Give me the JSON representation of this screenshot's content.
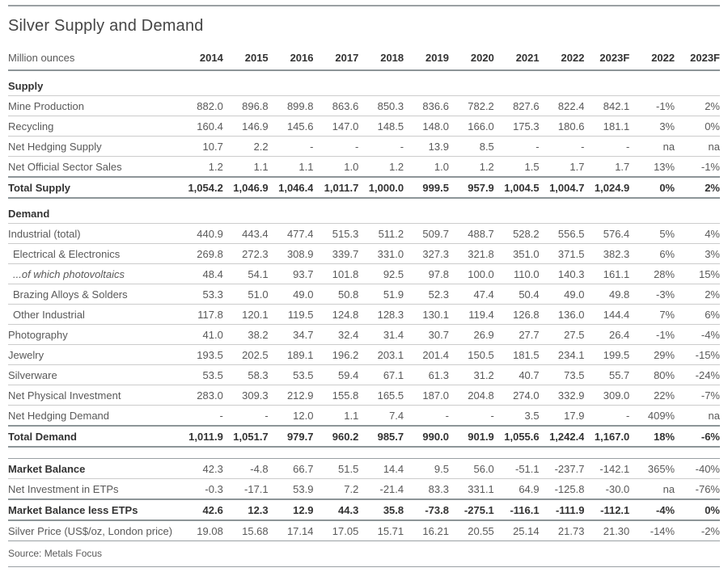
{
  "chart_data": {
    "type": "table",
    "title": "Silver Supply and Demand",
    "unit_label": "Million ounces",
    "columns": [
      "2014",
      "2015",
      "2016",
      "2017",
      "2018",
      "2019",
      "2020",
      "2021",
      "2022",
      "2023F",
      "2022",
      "2023F"
    ],
    "rows": [
      {
        "label": "Supply",
        "style": "section",
        "border": "light",
        "values": []
      },
      {
        "label": "Mine Production",
        "style": "data",
        "border": "light",
        "values": [
          "882.0",
          "896.8",
          "899.8",
          "863.6",
          "850.3",
          "836.6",
          "782.2",
          "827.6",
          "822.4",
          "842.1",
          "-1%",
          "2%"
        ]
      },
      {
        "label": "Recycling",
        "style": "data",
        "border": "light",
        "values": [
          "160.4",
          "146.9",
          "145.6",
          "147.0",
          "148.5",
          "148.0",
          "166.0",
          "175.3",
          "180.6",
          "181.1",
          "3%",
          "0%"
        ]
      },
      {
        "label": "Net Hedging Supply",
        "style": "data",
        "border": "light",
        "values": [
          "10.7",
          "2.2",
          "-",
          "-",
          "-",
          "13.9",
          "8.5",
          "-",
          "-",
          "-",
          "na",
          "na"
        ]
      },
      {
        "label": "Net Official Sector Sales",
        "style": "data",
        "border": "heavy",
        "values": [
          "1.2",
          "1.1",
          "1.1",
          "1.0",
          "1.2",
          "1.0",
          "1.2",
          "1.5",
          "1.7",
          "1.7",
          "13%",
          "-1%"
        ]
      },
      {
        "label": "Total Supply",
        "style": "total",
        "border": "heavy",
        "values": [
          "1,054.2",
          "1,046.9",
          "1,046.4",
          "1,011.7",
          "1,000.0",
          "999.5",
          "957.9",
          "1,004.5",
          "1,004.7",
          "1,024.9",
          "0%",
          "2%"
        ]
      },
      {
        "label": "Demand",
        "style": "section",
        "border": "light",
        "values": []
      },
      {
        "label": "Industrial (total)",
        "style": "data",
        "border": "light",
        "values": [
          "440.9",
          "443.4",
          "477.4",
          "515.3",
          "511.2",
          "509.7",
          "488.7",
          "528.2",
          "556.5",
          "576.4",
          "5%",
          "4%"
        ]
      },
      {
        "label": "Electrical & Electronics",
        "style": "indent",
        "border": "light",
        "values": [
          "269.8",
          "272.3",
          "308.9",
          "339.7",
          "331.0",
          "327.3",
          "321.8",
          "351.0",
          "371.5",
          "382.3",
          "6%",
          "3%"
        ]
      },
      {
        "label": "...of which photovoltaics",
        "style": "indent-italic",
        "border": "light",
        "values": [
          "48.4",
          "54.1",
          "93.7",
          "101.8",
          "92.5",
          "97.8",
          "100.0",
          "110.0",
          "140.3",
          "161.1",
          "28%",
          "15%"
        ]
      },
      {
        "label": "Brazing Alloys & Solders",
        "style": "indent",
        "border": "light",
        "values": [
          "53.3",
          "51.0",
          "49.0",
          "50.8",
          "51.9",
          "52.3",
          "47.4",
          "50.4",
          "49.0",
          "49.8",
          "-3%",
          "2%"
        ]
      },
      {
        "label": "Other Industrial",
        "style": "indent",
        "border": "light",
        "values": [
          "117.8",
          "120.1",
          "119.5",
          "124.8",
          "128.3",
          "130.1",
          "119.4",
          "126.8",
          "136.0",
          "144.4",
          "7%",
          "6%"
        ]
      },
      {
        "label": "Photography",
        "style": "data",
        "border": "light",
        "values": [
          "41.0",
          "38.2",
          "34.7",
          "32.4",
          "31.4",
          "30.7",
          "26.9",
          "27.7",
          "27.5",
          "26.4",
          "-1%",
          "-4%"
        ]
      },
      {
        "label": "Jewelry",
        "style": "data",
        "border": "light",
        "values": [
          "193.5",
          "202.5",
          "189.1",
          "196.2",
          "203.1",
          "201.4",
          "150.5",
          "181.5",
          "234.1",
          "199.5",
          "29%",
          "-15%"
        ]
      },
      {
        "label": "Silverware",
        "style": "data",
        "border": "light",
        "values": [
          "53.5",
          "58.3",
          "53.5",
          "59.4",
          "67.1",
          "61.3",
          "31.2",
          "40.7",
          "73.5",
          "55.7",
          "80%",
          "-24%"
        ]
      },
      {
        "label": "Net Physical Investment",
        "style": "data",
        "border": "light",
        "values": [
          "283.0",
          "309.3",
          "212.9",
          "155.8",
          "165.5",
          "187.0",
          "204.8",
          "274.0",
          "332.9",
          "309.0",
          "22%",
          "-7%"
        ]
      },
      {
        "label": "Net Hedging Demand",
        "style": "data",
        "border": "heavy",
        "values": [
          "-",
          "-",
          "12.0",
          "1.1",
          "7.4",
          "-",
          "-",
          "3.5",
          "17.9",
          "-",
          "409%",
          "na"
        ]
      },
      {
        "label": "Total Demand",
        "style": "total",
        "border": "heavy",
        "values": [
          "1,011.9",
          "1,051.7",
          "979.7",
          "960.2",
          "985.7",
          "990.0",
          "901.9",
          "1,055.6",
          "1,242.4",
          "1,167.0",
          "18%",
          "-6%"
        ]
      },
      {
        "label": "",
        "style": "spacer",
        "border": "medium",
        "values": []
      },
      {
        "label": "Market Balance",
        "style": "bold-label",
        "border": "light",
        "values": [
          "42.3",
          "-4.8",
          "66.7",
          "51.5",
          "14.4",
          "9.5",
          "56.0",
          "-51.1",
          "-237.7",
          "-142.1",
          "365%",
          "-40%"
        ]
      },
      {
        "label": "Net Investment in ETPs",
        "style": "data",
        "border": "heavy",
        "values": [
          "-0.3",
          "-17.1",
          "53.9",
          "7.2",
          "-21.4",
          "83.3",
          "331.1",
          "64.9",
          "-125.8",
          "-30.0",
          "na",
          "-76%"
        ]
      },
      {
        "label": "Market Balance less ETPs",
        "style": "total",
        "border": "heavy",
        "values": [
          "42.6",
          "12.3",
          "12.9",
          "44.3",
          "35.8",
          "-73.8",
          "-275.1",
          "-116.1",
          "-111.9",
          "-112.1",
          "-4%",
          "0%"
        ]
      },
      {
        "label": "Silver Price (US$/oz, London price)",
        "style": "data",
        "border": "medium",
        "values": [
          "19.08",
          "15.68",
          "17.14",
          "17.05",
          "15.71",
          "16.21",
          "20.55",
          "25.14",
          "21.73",
          "21.30",
          "-14%",
          "-2%"
        ]
      }
    ],
    "source": "Source: Metals Focus",
    "colors": {
      "text": "#595959",
      "bold_text": "#333333",
      "rule_light": "#cccccc",
      "rule_heavy": "#8d9598"
    }
  }
}
